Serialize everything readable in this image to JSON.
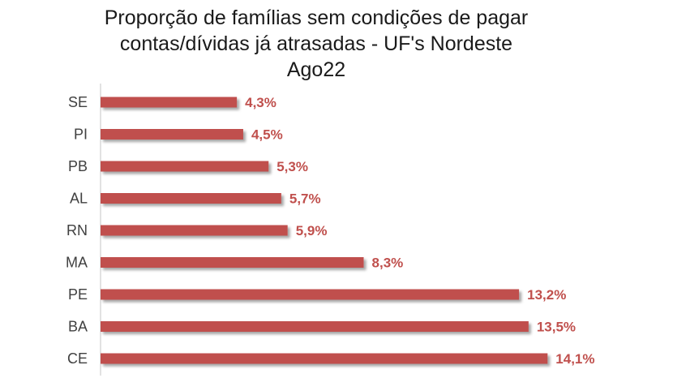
{
  "chart_data": {
    "type": "bar",
    "orientation": "horizontal",
    "title_lines": [
      "Proporção de famílias sem condições de pagar",
      "contas/dívidas já atrasadas - UF's Nordeste",
      "Ago22"
    ],
    "categories": [
      "SE",
      "PI",
      "PB",
      "AL",
      "RN",
      "MA",
      "PE",
      "BA",
      "CE"
    ],
    "values": [
      4.3,
      4.5,
      5.3,
      5.7,
      5.9,
      8.3,
      13.2,
      13.5,
      14.1
    ],
    "value_labels": [
      "4,3%",
      "4,5%",
      "5,3%",
      "5,7%",
      "5,9%",
      "8,3%",
      "13,2%",
      "13,5%",
      "14,1%"
    ],
    "xlim": [
      0,
      16
    ],
    "grid": false,
    "legend": "none",
    "bar_color": "#c0504d",
    "label_color": "#c0504d"
  }
}
